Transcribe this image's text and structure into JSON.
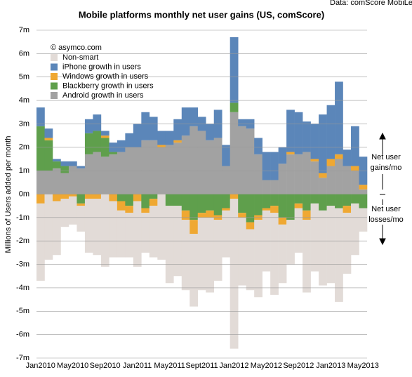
{
  "chart_data": {
    "type": "stacked-bar",
    "title": "Mobile platforms monthly net user gains (US, comScore)",
    "source": "Data: comScore MobiLens",
    "credit": "© asymco.com",
    "y_label": "Millions of Users added per month",
    "annotations": [
      [
        "Net user",
        "gains/mo"
      ],
      [
        "Net user",
        "losses/mo"
      ]
    ],
    "categories": [
      "Jan2010",
      null,
      null,
      null,
      "May2010",
      null,
      null,
      null,
      "Sep2010",
      null,
      null,
      null,
      "Jan2011",
      null,
      null,
      null,
      "May2011",
      null,
      null,
      null,
      "Sept2011",
      null,
      null,
      null,
      "Jan2012",
      null,
      null,
      null,
      "May2012",
      null,
      null,
      null,
      "Sep2012",
      null,
      null,
      null,
      "Jan2013",
      null,
      null,
      null,
      "May2013"
    ],
    "ylim": [
      -7,
      7
    ],
    "yticks": [
      {
        "value": -7,
        "label": "-7m"
      },
      {
        "value": -6,
        "label": "-6m"
      },
      {
        "value": -5,
        "label": "-5m"
      },
      {
        "value": -4,
        "label": "-4m"
      },
      {
        "value": -3,
        "label": "-3m"
      },
      {
        "value": -2,
        "label": "-2m"
      },
      {
        "value": -1,
        "label": "-1m"
      },
      {
        "value": 0,
        "label": "0m"
      },
      {
        "value": 1,
        "label": "1m"
      },
      {
        "value": 2,
        "label": "2m"
      },
      {
        "value": 3,
        "label": "3m"
      },
      {
        "value": 4,
        "label": "4m"
      },
      {
        "value": 5,
        "label": "5m"
      },
      {
        "value": 6,
        "label": "6m"
      },
      {
        "value": 7,
        "label": "7m"
      }
    ],
    "grid": true,
    "series": [
      {
        "name": "Non-smart",
        "color": "#e2dbd7",
        "values": [
          -3.3,
          -2.8,
          -2.3,
          -1.2,
          -1.2,
          -1.1,
          -2.3,
          -2.4,
          -3.1,
          -2.4,
          -2.0,
          -1.9,
          -2.8,
          -1.7,
          -2.2,
          -2.8,
          -3.3,
          -3.0,
          -3.0,
          -3.1,
          -3.1,
          -3.2,
          -2.6,
          -2.0,
          -6.4,
          -2.9,
          -2.6,
          -3.3,
          -2.6,
          -3.5,
          -2.5,
          -1.9,
          -1.9,
          -3.1,
          -2.9,
          -3.2,
          -3.3,
          -4.0,
          -2.6,
          -2.2,
          -1.0
        ]
      },
      {
        "name": "iPhone growth in users",
        "color": "#5b86b9",
        "values": [
          0.8,
          0.4,
          0.1,
          0.2,
          0.2,
          0.1,
          0.6,
          0.7,
          0.2,
          0.4,
          0.5,
          0.6,
          1.0,
          1.2,
          1.0,
          0.6,
          0.6,
          0.9,
          1.2,
          0.8,
          0.6,
          0.7,
          1.2,
          0.9,
          2.8,
          0.3,
          0.4,
          0.7,
          1.2,
          1.2,
          0.7,
          1.8,
          1.8,
          1.3,
          1.5,
          2.5,
          2.3,
          3.1,
          0.7,
          1.7,
          1.2
        ]
      },
      {
        "name": "Windows growth in users",
        "color": "#efa832",
        "values": [
          -0.4,
          0.1,
          -0.3,
          -0.2,
          -0.1,
          -0.1,
          -0.2,
          -0.2,
          0.1,
          -0.3,
          -0.4,
          -0.3,
          -0.3,
          -0.2,
          -0.3,
          0.1,
          0.0,
          0.1,
          -0.4,
          -0.6,
          -0.2,
          -0.3,
          -0.2,
          -0.1,
          -0.2,
          -0.2,
          -0.3,
          -0.2,
          -0.1,
          -0.3,
          -0.3,
          0.1,
          -0.2,
          -0.4,
          0.1,
          0.2,
          0.3,
          0.2,
          -0.3,
          0.2,
          0.2
        ]
      },
      {
        "name": "Blackberry growth in users",
        "color": "#5f9f4c",
        "values": [
          1.9,
          1.3,
          0.3,
          0.3,
          0,
          -0.4,
          0.9,
          0.9,
          0.8,
          0.1,
          -0.3,
          -0.5,
          0.0,
          -0.6,
          -0.2,
          0.0,
          -0.5,
          -0.5,
          -0.7,
          -1.1,
          -0.8,
          -0.7,
          -0.9,
          -0.6,
          0.4,
          -0.8,
          -1.2,
          -0.9,
          -0.6,
          -0.5,
          -1.0,
          -1.1,
          -0.4,
          -0.7,
          -0.4,
          -0.7,
          -0.5,
          -0.6,
          -0.5,
          -0.4,
          -0.6
        ]
      },
      {
        "name": "Android growth in users",
        "color": "#a2a2a2",
        "values": [
          1.0,
          1.0,
          1.1,
          0.9,
          1.2,
          1.1,
          1.7,
          1.8,
          1.6,
          1.7,
          1.8,
          2.0,
          2.0,
          2.3,
          2.3,
          2.0,
          2.1,
          2.2,
          2.5,
          2.9,
          2.7,
          2.3,
          2.4,
          1.2,
          3.5,
          2.9,
          2.8,
          1.7,
          0.6,
          0.6,
          1.3,
          1.7,
          1.7,
          1.8,
          1.4,
          0.7,
          1.2,
          1.5,
          1.2,
          1.0,
          0.2
        ]
      }
    ]
  }
}
